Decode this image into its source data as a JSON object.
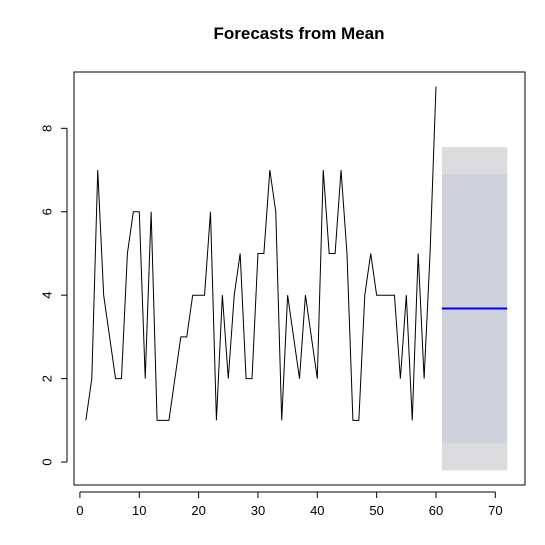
{
  "chart_data": {
    "type": "line",
    "title": "Forecasts from Mean",
    "xlabel": "",
    "ylabel": "",
    "xlim": [
      -1,
      75
    ],
    "ylim": [
      -0.55,
      9.35
    ],
    "xticks": [
      0,
      10,
      20,
      30,
      40,
      50,
      60,
      70
    ],
    "yticks": [
      0,
      2,
      4,
      6,
      8
    ],
    "grid": false,
    "series": [
      {
        "x": [
          1,
          2,
          3,
          4,
          5,
          6,
          7,
          8,
          9,
          10,
          11,
          12,
          13,
          14,
          15,
          16,
          17,
          18,
          19,
          20,
          21,
          22,
          23,
          24,
          25,
          26,
          27,
          28,
          29,
          30,
          31,
          32,
          33,
          34,
          35,
          36,
          37,
          38,
          39,
          40,
          41,
          42,
          43,
          44,
          45,
          46,
          47,
          48,
          49,
          50,
          51,
          52,
          53,
          54,
          55,
          56,
          57,
          58,
          59,
          60
        ],
        "values": [
          1,
          2,
          7,
          4,
          3,
          2,
          2,
          5,
          6,
          6,
          2,
          6,
          1,
          1,
          1,
          2,
          3,
          3,
          4,
          4,
          4,
          6,
          1,
          4,
          2,
          4,
          5,
          2,
          2,
          5,
          5,
          7,
          6,
          1,
          4,
          3,
          2,
          4,
          3,
          2,
          7,
          5,
          5,
          7,
          5,
          1,
          1,
          4,
          5,
          4,
          4,
          4,
          4,
          2,
          4,
          1,
          5,
          2,
          5,
          9
        ],
        "color": "#000000"
      }
    ],
    "forecast": {
      "x_start": 61,
      "x_end": 72,
      "mean": 3.68,
      "interval_80": [
        0.45,
        6.9
      ],
      "interval_95": [
        -0.2,
        7.55
      ],
      "mean_color": "#0000ff",
      "band_80_color": "#cfd2dc",
      "band_95_color": "#dcdbde"
    }
  }
}
